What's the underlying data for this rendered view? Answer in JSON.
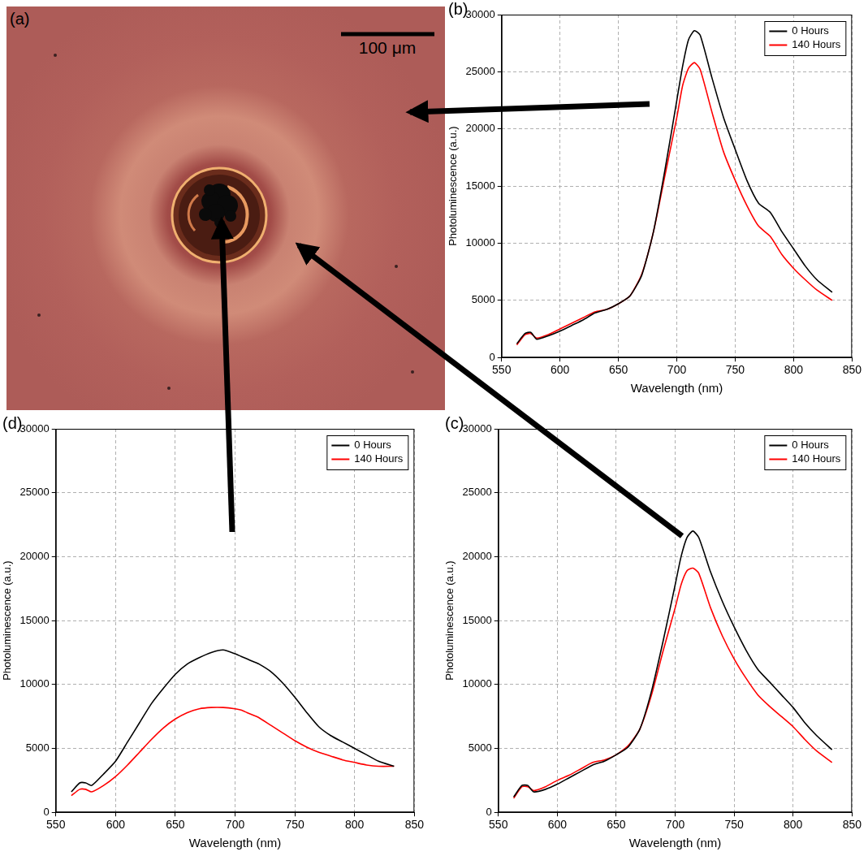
{
  "image": {
    "panel": "(a)",
    "scale_bar": "100 μm"
  },
  "chart_data": [
    {
      "panel": "(b)",
      "type": "line",
      "x_label": "Wavelength (nm)",
      "y_label": "Photoluminescence (a.u.)",
      "x": [
        563,
        570,
        575,
        580,
        590,
        600,
        610,
        620,
        630,
        640,
        650,
        660,
        670,
        680,
        690,
        700,
        705,
        710,
        715,
        720,
        730,
        740,
        750,
        760,
        770,
        780,
        790,
        800,
        810,
        820,
        833
      ],
      "series": [
        {
          "name": "0 Hours",
          "color": "#000000",
          "values": [
            1200,
            2100,
            2200,
            1600,
            1900,
            2300,
            2800,
            3300,
            3900,
            4200,
            4700,
            5400,
            7200,
            11000,
            16500,
            22500,
            25500,
            27800,
            28600,
            28200,
            24500,
            21000,
            18200,
            15500,
            13500,
            12700,
            11000,
            9500,
            8000,
            6800,
            5700
          ]
        },
        {
          "name": "140 Hours",
          "color": "#ff0000",
          "values": [
            1100,
            2000,
            2100,
            1700,
            2000,
            2500,
            3000,
            3500,
            4000,
            4200,
            4700,
            5400,
            7300,
            11000,
            16000,
            21000,
            23800,
            25300,
            25800,
            25200,
            21500,
            18000,
            15500,
            13300,
            11500,
            10600,
            9000,
            7800,
            6800,
            5900,
            5000
          ]
        }
      ],
      "xlim": [
        550,
        850
      ],
      "xticks": [
        550,
        600,
        650,
        700,
        750,
        800,
        850
      ],
      "ylim": [
        0,
        30000
      ],
      "yticks": [
        0,
        5000,
        10000,
        15000,
        20000,
        25000,
        30000
      ],
      "grid": true,
      "legend": "top right"
    },
    {
      "panel": "(c)",
      "type": "line",
      "x_label": "Wavelength (nm)",
      "y_label": "Photoluminescence (a.u.)",
      "x": [
        563,
        570,
        575,
        580,
        590,
        600,
        610,
        620,
        630,
        640,
        650,
        660,
        670,
        680,
        690,
        700,
        705,
        710,
        715,
        720,
        730,
        740,
        750,
        760,
        770,
        780,
        790,
        800,
        810,
        820,
        833
      ],
      "series": [
        {
          "name": "0 Hours",
          "color": "#000000",
          "values": [
            1200,
            2100,
            2100,
            1600,
            1800,
            2200,
            2700,
            3200,
            3700,
            4000,
            4500,
            5100,
            6500,
            9500,
            13500,
            17800,
            20000,
            21500,
            22000,
            21500,
            18800,
            16500,
            14500,
            12700,
            11200,
            10200,
            9200,
            8200,
            7000,
            6000,
            4900
          ]
        },
        {
          "name": "140 Hours",
          "color": "#ff0000",
          "values": [
            1100,
            2000,
            2000,
            1700,
            2000,
            2500,
            2900,
            3400,
            3900,
            4100,
            4500,
            5200,
            6500,
            9200,
            12700,
            16000,
            17800,
            18900,
            19100,
            18700,
            16000,
            13800,
            12000,
            10500,
            9200,
            8300,
            7500,
            6700,
            5700,
            4800,
            3900
          ]
        }
      ],
      "xlim": [
        550,
        850
      ],
      "xticks": [
        550,
        600,
        650,
        700,
        750,
        800,
        850
      ],
      "ylim": [
        0,
        30000
      ],
      "yticks": [
        0,
        5000,
        10000,
        15000,
        20000,
        25000,
        30000
      ],
      "grid": true,
      "legend": "top right"
    },
    {
      "panel": "(d)",
      "type": "line",
      "x_label": "Wavelength (nm)",
      "y_label": "Photoluminescence (a.u.)",
      "x": [
        563,
        570,
        575,
        580,
        590,
        600,
        610,
        620,
        630,
        640,
        650,
        660,
        670,
        680,
        690,
        700,
        705,
        710,
        715,
        720,
        730,
        740,
        750,
        760,
        770,
        780,
        790,
        800,
        810,
        820,
        833
      ],
      "series": [
        {
          "name": "0 Hours",
          "color": "#000000",
          "values": [
            1600,
            2300,
            2300,
            2100,
            3000,
            4000,
            5500,
            7000,
            8500,
            9700,
            10800,
            11600,
            12100,
            12500,
            12700,
            12400,
            12200,
            12000,
            11800,
            11600,
            11000,
            10100,
            9000,
            7800,
            6700,
            6000,
            5500,
            5000,
            4500,
            4000,
            3600
          ]
        },
        {
          "name": "140 Hours",
          "color": "#ff0000",
          "values": [
            1300,
            1800,
            1800,
            1600,
            2100,
            2800,
            3700,
            4700,
            5700,
            6600,
            7300,
            7800,
            8100,
            8200,
            8200,
            8100,
            8000,
            7800,
            7600,
            7400,
            6800,
            6200,
            5600,
            5100,
            4700,
            4400,
            4100,
            3900,
            3700,
            3600,
            3600
          ]
        }
      ],
      "xlim": [
        550,
        850
      ],
      "xticks": [
        550,
        600,
        650,
        700,
        750,
        800,
        850
      ],
      "ylim": [
        0,
        30000
      ],
      "yticks": [
        0,
        5000,
        10000,
        15000,
        20000,
        25000,
        30000
      ],
      "grid": true,
      "legend": "top right"
    }
  ]
}
